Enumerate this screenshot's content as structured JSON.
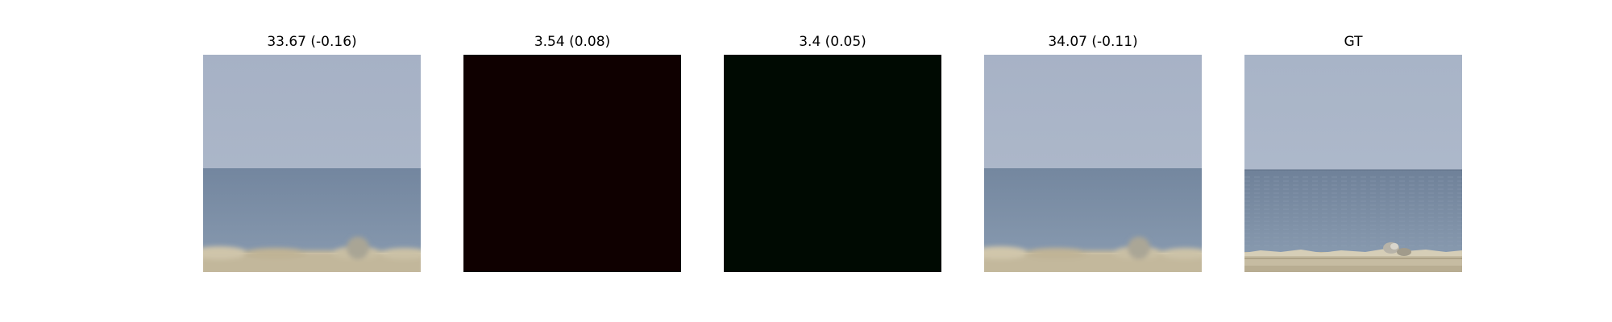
{
  "panels": [
    {
      "title": "33.67 (-0.16)",
      "image": {
        "sky_color": "#a8b3c6",
        "sea_color": "#7b8ea8",
        "shore_color": "#c2b79b",
        "blurred": true,
        "shows_rocks": true
      }
    },
    {
      "title": "3.54 (0.08)",
      "image": {
        "fill_color": "#0f0000"
      }
    },
    {
      "title": "3.4 (0.05)",
      "image": {
        "fill_color": "#000a02"
      }
    },
    {
      "title": "34.07 (-0.11)",
      "image": {
        "sky_color": "#a9b4c7",
        "sea_color": "#7c8fa9",
        "shore_color": "#c3b89c",
        "blurred": true,
        "shows_rocks": true
      }
    },
    {
      "title": "GT",
      "image": {
        "sky_color": "#aab6c8",
        "sea_color": "#7a8ca6",
        "shore_color": "#c6bca2",
        "blurred": false,
        "shows_rocks": true
      }
    }
  ]
}
